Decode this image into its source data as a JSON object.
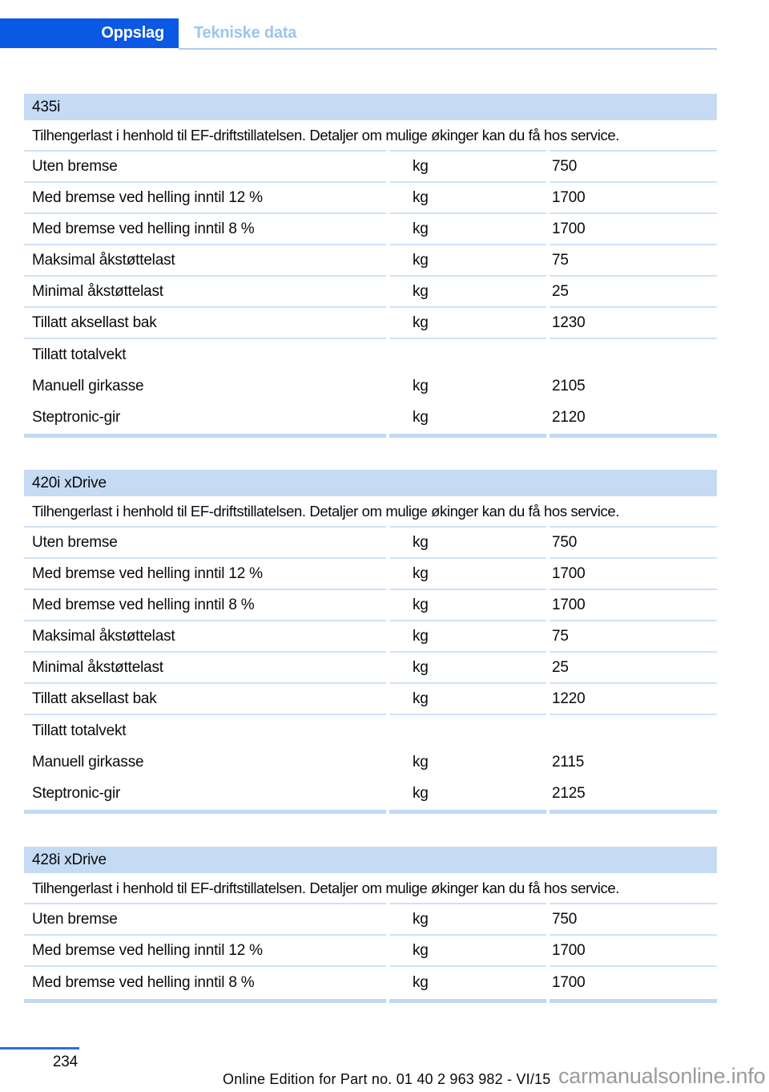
{
  "header": {
    "tab_active": "Oppslag",
    "tab_section": "Tekniske data"
  },
  "tables": [
    {
      "title": "435i",
      "intro": "Tilhengerlast i henhold til EF-driftstillatelsen. Detaljer om mulige økinger kan du få hos service.",
      "rows": [
        {
          "label": "Uten bremse",
          "unit": "kg",
          "value": "750",
          "type": "data"
        },
        {
          "label": "Med bremse ved helling inntil 12 %",
          "unit": "kg",
          "value": "1700",
          "type": "data"
        },
        {
          "label": "Med bremse ved helling inntil 8 %",
          "unit": "kg",
          "value": "1700",
          "type": "data"
        },
        {
          "label": "Maksimal åkstøttelast",
          "unit": "kg",
          "value": "75",
          "type": "data"
        },
        {
          "label": "Minimal åkstøttelast",
          "unit": "kg",
          "value": "25",
          "type": "data"
        },
        {
          "label": "Tillatt aksellast bak",
          "unit": "kg",
          "value": "1230",
          "type": "data"
        },
        {
          "label": "Tillatt totalvekt",
          "unit": "",
          "value": "",
          "type": "group"
        },
        {
          "label": "Manuell girkasse",
          "unit": "kg",
          "value": "2105",
          "type": "sub"
        },
        {
          "label": "Steptronic-gir",
          "unit": "kg",
          "value": "2120",
          "type": "sub"
        }
      ]
    },
    {
      "title": "420i xDrive",
      "intro": "Tilhengerlast i henhold til EF-driftstillatelsen. Detaljer om mulige økinger kan du få hos service.",
      "rows": [
        {
          "label": "Uten bremse",
          "unit": "kg",
          "value": "750",
          "type": "data"
        },
        {
          "label": "Med bremse ved helling inntil 12 %",
          "unit": "kg",
          "value": "1700",
          "type": "data"
        },
        {
          "label": "Med bremse ved helling inntil 8 %",
          "unit": "kg",
          "value": "1700",
          "type": "data"
        },
        {
          "label": "Maksimal åkstøttelast",
          "unit": "kg",
          "value": "75",
          "type": "data"
        },
        {
          "label": "Minimal åkstøttelast",
          "unit": "kg",
          "value": "25",
          "type": "data"
        },
        {
          "label": "Tillatt aksellast bak",
          "unit": "kg",
          "value": "1220",
          "type": "data"
        },
        {
          "label": "Tillatt totalvekt",
          "unit": "",
          "value": "",
          "type": "group"
        },
        {
          "label": "Manuell girkasse",
          "unit": "kg",
          "value": "2115",
          "type": "sub"
        },
        {
          "label": "Steptronic-gir",
          "unit": "kg",
          "value": "2125",
          "type": "sub"
        }
      ]
    },
    {
      "title": "428i xDrive",
      "intro": "Tilhengerlast i henhold til EF-driftstillatelsen. Detaljer om mulige økinger kan du få hos service.",
      "rows": [
        {
          "label": "Uten bremse",
          "unit": "kg",
          "value": "750",
          "type": "data"
        },
        {
          "label": "Med bremse ved helling inntil 12 %",
          "unit": "kg",
          "value": "1700",
          "type": "data"
        },
        {
          "label": "Med bremse ved helling inntil 8 %",
          "unit": "kg",
          "value": "1700",
          "type": "data"
        }
      ]
    }
  ],
  "footer": {
    "page_number": "234",
    "edition_note": "Online Edition for Part no. 01 40 2 963 982 - VI/15",
    "watermark": "carmanualsonline.info"
  },
  "colors": {
    "tab_blue": "#0a58e4",
    "tab_inactive_text": "#9dc4ef",
    "tab_underline": "#aecdf0",
    "table_header_bg": "#c5dbf4",
    "row_line": "#cfe2f6",
    "table_end_bar": "#c2d9f3",
    "footer_line_blue": "#2e6de2",
    "watermark_gray": "#9b9b9b"
  }
}
